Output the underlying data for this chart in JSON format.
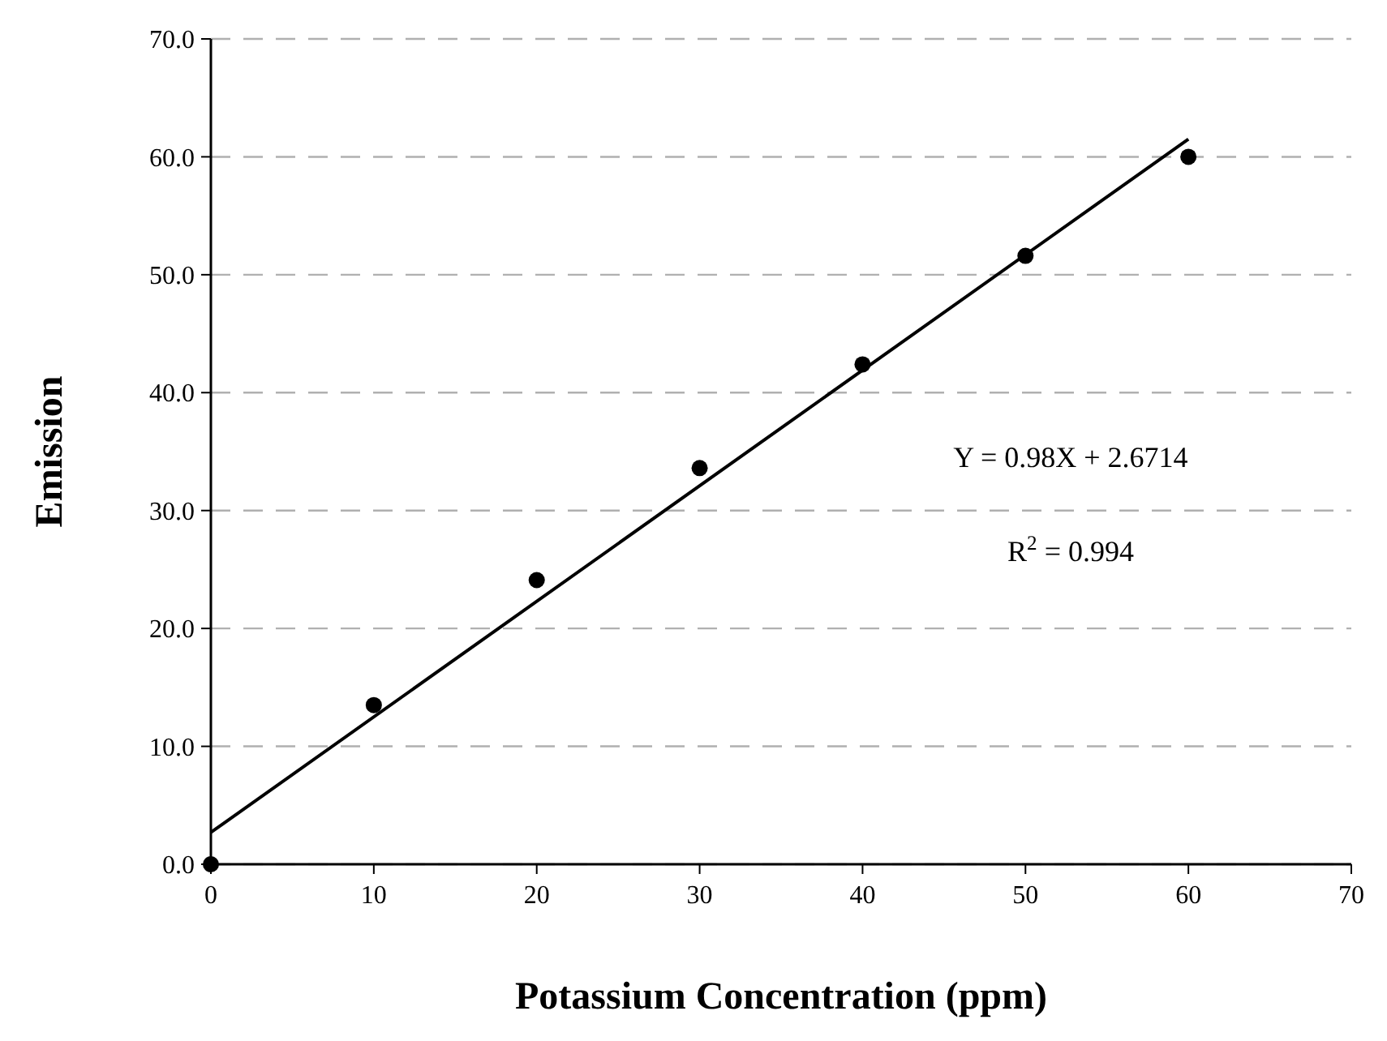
{
  "chart_data": {
    "type": "scatter",
    "xlabel": "Potassium Concentration (ppm)",
    "ylabel": "Emission",
    "xlim": [
      0,
      70
    ],
    "xticks": [
      0,
      10,
      20,
      30,
      40,
      50,
      60,
      70
    ],
    "ylim": [
      0,
      70
    ],
    "yticks": [
      {
        "value": 0,
        "label": "0.0"
      },
      {
        "value": 10,
        "label": "10.0"
      },
      {
        "value": 20,
        "label": "20.0"
      },
      {
        "value": 30,
        "label": "30.0"
      },
      {
        "value": 40,
        "label": "40.0"
      },
      {
        "value": 50,
        "label": "50.0"
      },
      {
        "value": 60,
        "label": "60.0"
      },
      {
        "value": 70,
        "label": "70.0"
      }
    ],
    "grid": "y",
    "series": [
      {
        "color": "#000000",
        "marker": "circle",
        "x": [
          0,
          10,
          20,
          30,
          40,
          50,
          60
        ],
        "values": [
          0,
          13.5,
          24.1,
          33.6,
          42.4,
          51.6,
          60.0
        ]
      },
      {
        "type": "line",
        "color": "#000000",
        "marker": "none",
        "x": [
          0,
          60
        ],
        "values": [
          2.7,
          61.5
        ]
      }
    ],
    "annotations": [
      "Y = 0.98X + 2.6714",
      "R$^{2}$ = 0.994"
    ]
  }
}
